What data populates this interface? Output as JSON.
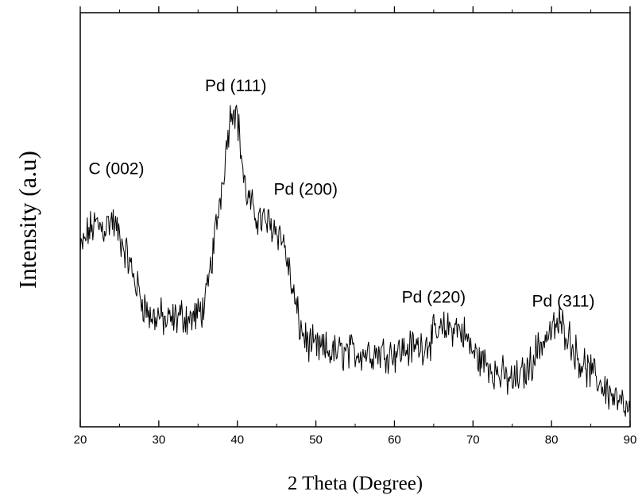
{
  "chart_data": {
    "type": "line",
    "title": "",
    "xlabel": "2 Theta (Degree)",
    "ylabel": "Intensity (a.u)",
    "xlim": [
      20,
      90
    ],
    "ylim": [
      0,
      100
    ],
    "xticks": [
      "20",
      "30",
      "40",
      "50",
      "60",
      "70",
      "80",
      "90"
    ],
    "grid": false,
    "line_color": "#000000",
    "annotations": [
      {
        "text": "C (002)",
        "x": 24.6,
        "y": 61
      },
      {
        "text": "Pd (111)",
        "x": 39.8,
        "y": 81
      },
      {
        "text": "Pd (200)",
        "x": 48.7,
        "y": 56
      },
      {
        "text": "Pd (220)",
        "x": 65.0,
        "y": 30
      },
      {
        "text": "Pd (311)",
        "x": 81.5,
        "y": 29
      }
    ],
    "series": [
      {
        "x": [
          20,
          21,
          22,
          23,
          24,
          25,
          26,
          27,
          28,
          29,
          30,
          31,
          32,
          33,
          34,
          35,
          36,
          37,
          38,
          38.5,
          39,
          39.5,
          40,
          40.5,
          41,
          42,
          43,
          44,
          45,
          46,
          47,
          48,
          49,
          50,
          52,
          54,
          56,
          58,
          60,
          62,
          64,
          65,
          66,
          67,
          68,
          69,
          70,
          71,
          72,
          73,
          74,
          75,
          76,
          77,
          78,
          79,
          80,
          81,
          82,
          83,
          84,
          85,
          86,
          87,
          88,
          89,
          90
        ],
        "y": [
          42,
          47,
          49,
          48,
          50,
          46,
          41,
          35,
          30,
          26,
          27,
          25,
          26,
          27,
          26,
          27,
          30,
          44,
          58,
          66,
          74,
          78,
          75,
          66,
          57,
          52,
          50,
          49,
          48,
          44,
          33,
          24,
          20,
          19,
          18,
          18,
          18,
          18,
          18,
          19,
          20,
          22,
          23,
          24,
          24,
          22,
          18,
          16,
          15,
          13,
          12,
          11,
          12,
          14,
          18,
          21,
          23,
          25,
          23,
          18,
          15,
          13,
          11,
          9,
          7,
          5,
          3
        ],
        "noise_amplitude": 3.5
      }
    ]
  }
}
